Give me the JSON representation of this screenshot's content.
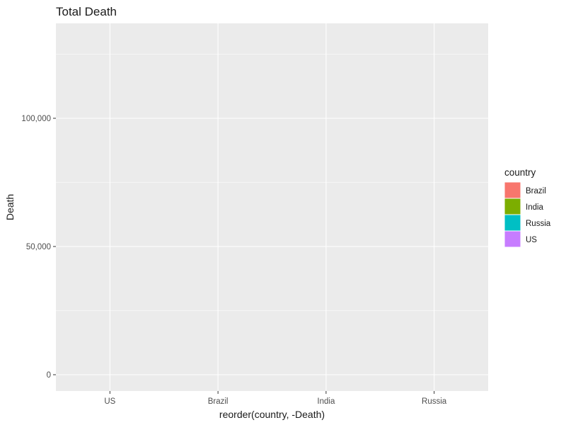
{
  "chart_data": {
    "type": "bar",
    "title": "Total Death",
    "xlabel": "reorder(country, -Death)",
    "ylabel": "Death",
    "categories": [
      "US",
      "Brazil",
      "India",
      "Russia"
    ],
    "ylim": [
      0,
      135000
    ],
    "yticks": [
      0,
      50000,
      100000
    ],
    "ytick_labels": [
      "0",
      "50,000",
      "100,000"
    ],
    "grid": true,
    "legend": {
      "title": "country",
      "placement": "right",
      "entries": [
        {
          "label": "Brazil",
          "color": "#F8766D"
        },
        {
          "label": "India",
          "color": "#7CAE00"
        },
        {
          "label": "Russia",
          "color": "#00BFC4"
        },
        {
          "label": "US",
          "color": "#C77CFF"
        }
      ]
    },
    "colors": {
      "panel_background": "#EBEBEB",
      "grid_line": "#FFFFFF"
    }
  }
}
